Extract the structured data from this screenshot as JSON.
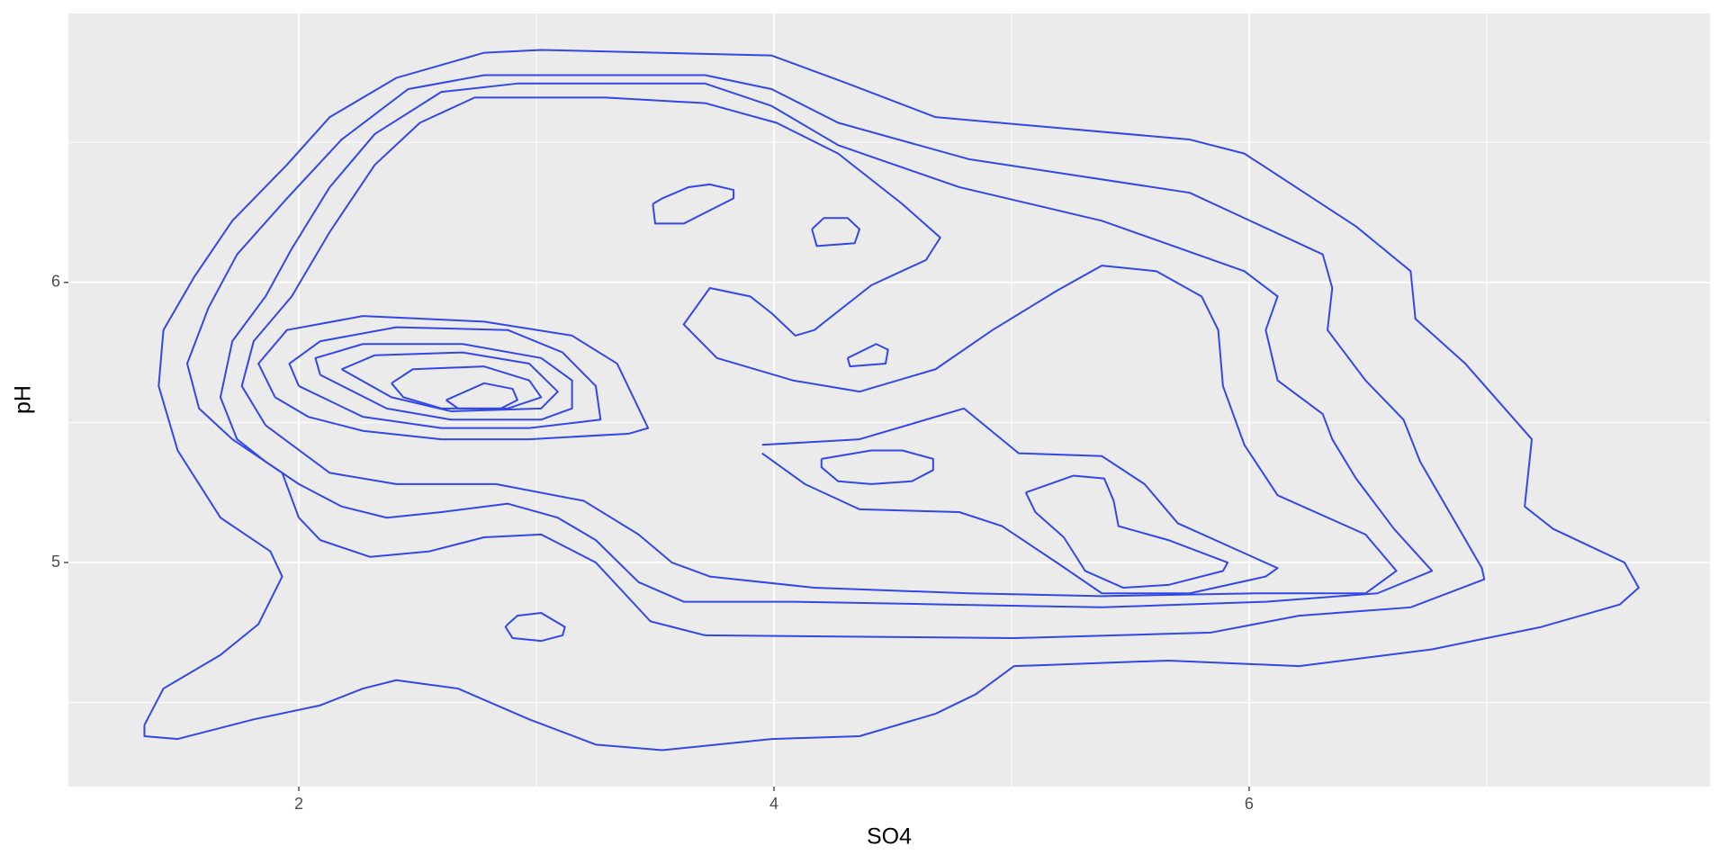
{
  "chart_data": {
    "type": "contour",
    "xlabel": "SO4",
    "ylabel": "pH",
    "xlim": [
      1.03,
      7.94
    ],
    "ylim": [
      4.2,
      6.96
    ],
    "xticks": [
      2,
      4,
      6
    ],
    "yticks": [
      5,
      6
    ],
    "grid": true,
    "background": "#ebebeb",
    "color": "#3347e6",
    "contours": [
      {
        "x": [
          1.35,
          1.43,
          1.67,
          1.83,
          1.93,
          1.88,
          1.67,
          1.49,
          1.41,
          1.43,
          1.56,
          1.72,
          1.95,
          2.13,
          2.41,
          2.78,
          3.02,
          3.99,
          4.31,
          4.68,
          5.75,
          5.98,
          6.45,
          6.68,
          6.7,
          6.91,
          7.19,
          7.16,
          7.28,
          7.58,
          7.64,
          7.56,
          7.23,
          6.77,
          6.21,
          5.66,
          5.01,
          4.85,
          4.68,
          4.36,
          3.99,
          3.53,
          3.25,
          2.97,
          2.67,
          2.41,
          2.27,
          2.09,
          1.81,
          1.49,
          1.35,
          1.35
        ],
        "y": [
          4.42,
          4.55,
          4.67,
          4.78,
          4.95,
          5.04,
          5.16,
          5.4,
          5.63,
          5.83,
          6.02,
          6.22,
          6.42,
          6.59,
          6.73,
          6.82,
          6.83,
          6.81,
          6.71,
          6.59,
          6.51,
          6.46,
          6.2,
          6.04,
          5.87,
          5.71,
          5.44,
          5.2,
          5.12,
          5.0,
          4.91,
          4.85,
          4.77,
          4.69,
          4.63,
          4.65,
          4.63,
          4.53,
          4.46,
          4.38,
          4.37,
          4.33,
          4.35,
          4.44,
          4.55,
          4.58,
          4.55,
          4.49,
          4.44,
          4.37,
          4.38,
          4.42
        ]
      },
      {
        "x": [
          2.0,
          1.93,
          1.72,
          1.58,
          1.53,
          1.62,
          1.74,
          1.95,
          2.18,
          2.46,
          2.78,
          3.71,
          3.99,
          4.27,
          4.82,
          5.75,
          6.31,
          6.35,
          6.33,
          6.49,
          6.65,
          6.72,
          6.98,
          6.99,
          6.68,
          6.21,
          5.84,
          5.01,
          3.71,
          3.48,
          3.25,
          3.02,
          2.78,
          2.55,
          2.3,
          2.09,
          2.0
        ],
        "y": [
          5.16,
          5.32,
          5.44,
          5.55,
          5.71,
          5.91,
          6.1,
          6.3,
          6.51,
          6.69,
          6.74,
          6.74,
          6.69,
          6.57,
          6.44,
          6.32,
          6.1,
          5.98,
          5.83,
          5.65,
          5.51,
          5.36,
          4.98,
          4.94,
          4.84,
          4.81,
          4.75,
          4.73,
          4.74,
          4.79,
          5.0,
          5.1,
          5.09,
          5.04,
          5.02,
          5.08,
          5.16
        ]
      },
      {
        "x": [
          2.18,
          2.0,
          1.86,
          1.74,
          1.67,
          1.72,
          1.86,
          1.97,
          2.13,
          2.32,
          2.6,
          2.92,
          3.71,
          3.99,
          4.27,
          4.78,
          5.38,
          5.98,
          6.12,
          6.07,
          6.12,
          6.31,
          6.35,
          6.45,
          6.61,
          6.77,
          6.54,
          6.07,
          5.38,
          4.73,
          4.08,
          3.62,
          3.43,
          3.25,
          3.09,
          2.88,
          2.6,
          2.37,
          2.18
        ],
        "y": [
          5.2,
          5.28,
          5.36,
          5.44,
          5.59,
          5.79,
          5.95,
          6.12,
          6.34,
          6.53,
          6.68,
          6.71,
          6.71,
          6.63,
          6.49,
          6.34,
          6.22,
          6.04,
          5.95,
          5.83,
          5.65,
          5.53,
          5.44,
          5.3,
          5.12,
          4.97,
          4.89,
          4.86,
          4.84,
          4.85,
          4.86,
          4.86,
          4.93,
          5.08,
          5.16,
          5.21,
          5.18,
          5.16,
          5.2
        ]
      },
      {
        "x": [
          1.86,
          1.76,
          1.81,
          1.97,
          2.13,
          2.32,
          2.51,
          2.74,
          3.29,
          3.71,
          4.01,
          4.27,
          4.54,
          4.7,
          4.64,
          4.41,
          4.17,
          4.09,
          3.99,
          3.9,
          3.73,
          3.62,
          3.76,
          4.08,
          4.36,
          4.68,
          4.92,
          5.19,
          5.38,
          5.61,
          5.8,
          5.87,
          5.89,
          5.98,
          6.12,
          6.49,
          6.62,
          6.49,
          6.03,
          5.38,
          4.82,
          4.17,
          3.73,
          3.57,
          3.43,
          3.2,
          2.83,
          2.41,
          2.13,
          1.86
        ],
        "y": [
          5.49,
          5.63,
          5.79,
          5.95,
          6.18,
          6.42,
          6.57,
          6.66,
          6.66,
          6.64,
          6.57,
          6.46,
          6.28,
          6.16,
          6.08,
          5.99,
          5.83,
          5.81,
          5.89,
          5.95,
          5.98,
          5.85,
          5.73,
          5.65,
          5.61,
          5.69,
          5.83,
          5.97,
          6.06,
          6.04,
          5.95,
          5.83,
          5.63,
          5.42,
          5.24,
          5.1,
          4.97,
          4.89,
          4.89,
          4.88,
          4.89,
          4.91,
          4.95,
          5.0,
          5.1,
          5.22,
          5.28,
          5.28,
          5.32,
          5.49
        ]
      },
      {
        "x": [
          1.9,
          1.83,
          1.95,
          2.27,
          2.78,
          3.15,
          3.34,
          3.47,
          3.39,
          2.97,
          2.6,
          2.27,
          2.04,
          1.9
        ],
        "y": [
          5.59,
          5.71,
          5.83,
          5.88,
          5.86,
          5.81,
          5.71,
          5.48,
          5.46,
          5.44,
          5.44,
          5.47,
          5.52,
          5.59
        ]
      },
      {
        "x": [
          2.0,
          1.96,
          2.09,
          2.41,
          2.88,
          3.11,
          3.25,
          3.27,
          2.97,
          2.6,
          2.27,
          2.0
        ],
        "y": [
          5.63,
          5.71,
          5.79,
          5.84,
          5.83,
          5.75,
          5.63,
          5.51,
          5.48,
          5.48,
          5.52,
          5.63
        ]
      },
      {
        "x": [
          2.09,
          2.07,
          2.27,
          2.69,
          3.02,
          3.15,
          3.15,
          3.02,
          2.64,
          2.37,
          2.09
        ],
        "y": [
          5.67,
          5.73,
          5.78,
          5.78,
          5.73,
          5.65,
          5.55,
          5.51,
          5.51,
          5.55,
          5.67
        ]
      },
      {
        "x": [
          2.18,
          2.32,
          2.69,
          2.97,
          3.09,
          3.02,
          2.64,
          2.39,
          2.18
        ],
        "y": [
          5.69,
          5.74,
          5.75,
          5.71,
          5.61,
          5.55,
          5.54,
          5.59,
          5.69
        ]
      },
      {
        "x": [
          2.39,
          2.48,
          2.78,
          2.97,
          3.02,
          2.88,
          2.6,
          2.44,
          2.39
        ],
        "y": [
          5.64,
          5.69,
          5.7,
          5.65,
          5.59,
          5.55,
          5.55,
          5.59,
          5.64
        ]
      },
      {
        "x": [
          2.62,
          2.78,
          2.9,
          2.92,
          2.85,
          2.67,
          2.62
        ],
        "y": [
          5.58,
          5.64,
          5.62,
          5.58,
          5.55,
          5.55,
          5.58
        ]
      },
      {
        "x": [
          3.95,
          4.36,
          4.8,
          5.03,
          5.38,
          5.56,
          5.7,
          6.12,
          6.07,
          5.75,
          5.38,
          5.19,
          4.96,
          4.78,
          4.36,
          4.13,
          3.95
        ],
        "y": [
          5.42,
          5.44,
          5.55,
          5.39,
          5.38,
          5.28,
          5.14,
          4.98,
          4.95,
          4.89,
          4.89,
          5.0,
          5.13,
          5.18,
          5.19,
          5.28,
          5.39
        ]
      },
      {
        "x": [
          4.2,
          4.41,
          4.54,
          4.67,
          4.67,
          4.58,
          4.41,
          4.27,
          4.2,
          4.2
        ],
        "y": [
          5.37,
          5.4,
          5.4,
          5.37,
          5.33,
          5.29,
          5.28,
          5.29,
          5.34,
          5.37
        ]
      },
      {
        "x": [
          5.06,
          5.26,
          5.39,
          5.43,
          5.45,
          5.66,
          5.91,
          5.89,
          5.66,
          5.47,
          5.31,
          5.22,
          5.1,
          5.06
        ],
        "y": [
          5.25,
          5.31,
          5.3,
          5.22,
          5.13,
          5.08,
          5.0,
          4.97,
          4.92,
          4.91,
          4.97,
          5.09,
          5.18,
          5.25
        ]
      },
      {
        "x": [
          2.88,
          2.92,
          3.02,
          3.12,
          3.11,
          3.02,
          2.9,
          2.87,
          2.88
        ],
        "y": [
          4.78,
          4.81,
          4.82,
          4.77,
          4.74,
          4.72,
          4.73,
          4.77,
          4.78
        ]
      },
      {
        "x": [
          3.49,
          3.5,
          3.62,
          3.83,
          3.83,
          3.73,
          3.64,
          3.53,
          3.49
        ],
        "y": [
          6.28,
          6.21,
          6.21,
          6.3,
          6.33,
          6.35,
          6.34,
          6.3,
          6.28
        ]
      },
      {
        "x": [
          4.16,
          4.18,
          4.34,
          4.36,
          4.31,
          4.21,
          4.16
        ],
        "y": [
          6.19,
          6.13,
          6.14,
          6.19,
          6.23,
          6.23,
          6.19
        ]
      },
      {
        "x": [
          4.31,
          4.43,
          4.48,
          4.47,
          4.32,
          4.31
        ],
        "y": [
          5.73,
          5.78,
          5.76,
          5.71,
          5.7,
          5.73
        ]
      }
    ]
  }
}
